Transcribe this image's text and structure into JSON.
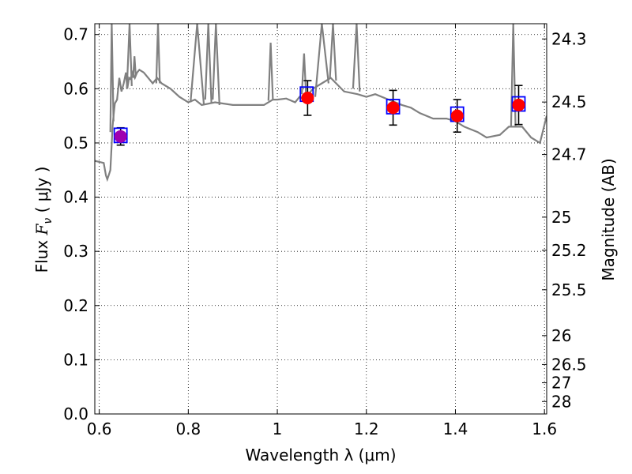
{
  "chart_data": {
    "type": "scatter",
    "x_axis": {
      "label": "Wavelength  λ (μm)",
      "lim": [
        0.59,
        1.605
      ],
      "ticks": [
        0.6,
        0.8,
        1.0,
        1.2,
        1.4,
        1.6
      ],
      "tick_labels": [
        "0.6",
        "0.8",
        "1",
        "1.2",
        "1.4",
        "1.6"
      ]
    },
    "y_axis": {
      "label_prefix": "Flux  ",
      "label_symbol": "F",
      "label_sub": "ν",
      "label_units": "  ( μJy )",
      "lim": [
        0,
        0.72
      ],
      "ticks": [
        0,
        0.1,
        0.2,
        0.3,
        0.4,
        0.5,
        0.6,
        0.7
      ],
      "tick_labels": [
        "0.0",
        "0.1",
        "0.2",
        "0.3",
        "0.4",
        "0.5",
        "0.6",
        "0.7"
      ]
    },
    "y2_axis": {
      "label": "Magnitude (AB)",
      "ticks": [
        24.3,
        24.5,
        24.7,
        25,
        25.2,
        25.5,
        26,
        26.5,
        27,
        28
      ],
      "tick_labels": [
        "24.3",
        "24.5",
        "24.7",
        "25",
        "25.2",
        "25.5",
        "26",
        "26.5",
        "27",
        "28"
      ]
    },
    "grid": true,
    "model_spectrum": {
      "color": "#808080",
      "x": [
        0.59,
        0.61,
        0.615,
        0.618,
        0.621,
        0.625,
        0.63,
        0.632,
        0.635,
        0.64,
        0.645,
        0.65,
        0.655,
        0.66,
        0.663,
        0.667,
        0.67,
        0.675,
        0.68,
        0.685,
        0.69,
        0.7,
        0.72,
        0.73,
        0.74,
        0.76,
        0.78,
        0.8,
        0.815,
        0.83,
        0.86,
        0.9,
        0.94,
        0.97,
        0.99,
        1.0,
        1.02,
        1.04,
        1.05,
        1.06,
        1.08,
        1.1,
        1.12,
        1.15,
        1.18,
        1.2,
        1.22,
        1.25,
        1.28,
        1.3,
        1.32,
        1.35,
        1.38,
        1.4,
        1.42,
        1.45,
        1.47,
        1.5,
        1.52,
        1.55,
        1.57,
        1.59,
        1.605
      ],
      "y": [
        0.467,
        0.463,
        0.44,
        0.433,
        0.44,
        0.45,
        0.53,
        0.55,
        0.573,
        0.58,
        0.62,
        0.595,
        0.61,
        0.63,
        0.6,
        0.62,
        0.618,
        0.63,
        0.62,
        0.63,
        0.635,
        0.63,
        0.61,
        0.62,
        0.61,
        0.6,
        0.585,
        0.575,
        0.58,
        0.57,
        0.575,
        0.57,
        0.57,
        0.57,
        0.58,
        0.58,
        0.582,
        0.575,
        0.585,
        0.58,
        0.6,
        0.61,
        0.62,
        0.595,
        0.59,
        0.585,
        0.59,
        0.58,
        0.57,
        0.565,
        0.555,
        0.545,
        0.545,
        0.54,
        0.53,
        0.52,
        0.51,
        0.515,
        0.53,
        0.53,
        0.51,
        0.5,
        0.55
      ]
    },
    "model_spikes": [
      {
        "x": [
          0.625,
          0.628,
          0.632
        ],
        "y": [
          0.52,
          0.72,
          0.54
        ]
      },
      {
        "x": [
          0.662,
          0.668,
          0.673
        ],
        "y": [
          0.6,
          0.72,
          0.605
        ]
      },
      {
        "x": [
          0.676,
          0.679,
          0.682
        ],
        "y": [
          0.62,
          0.66,
          0.625
        ]
      },
      {
        "x": [
          0.728,
          0.732,
          0.736
        ],
        "y": [
          0.61,
          0.72,
          0.61
        ]
      },
      {
        "x": [
          0.805,
          0.82,
          0.835
        ],
        "y": [
          0.575,
          0.72,
          0.57
        ]
      },
      {
        "x": [
          0.838,
          0.845,
          0.852
        ],
        "y": [
          0.58,
          0.72,
          0.575
        ]
      },
      {
        "x": [
          0.855,
          0.862,
          0.87
        ],
        "y": [
          0.58,
          0.72,
          0.57
        ]
      },
      {
        "x": [
          0.98,
          0.985,
          0.99
        ],
        "y": [
          0.578,
          0.685,
          0.58
        ]
      },
      {
        "x": [
          1.055,
          1.06,
          1.065
        ],
        "y": [
          0.59,
          0.665,
          0.58
        ]
      },
      {
        "x": [
          1.085,
          1.1,
          1.115
        ],
        "y": [
          0.585,
          0.72,
          0.61
        ]
      },
      {
        "x": [
          1.118,
          1.125,
          1.132
        ],
        "y": [
          0.62,
          0.72,
          0.615
        ]
      },
      {
        "x": [
          1.17,
          1.178,
          1.185
        ],
        "y": [
          0.6,
          0.72,
          0.595
        ]
      },
      {
        "x": [
          1.525,
          1.53,
          1.535
        ],
        "y": [
          0.53,
          0.72,
          0.53
        ]
      }
    ],
    "synthetic_flux": {
      "marker": "open-square",
      "color": "#0000ff",
      "x": [
        0.648,
        1.066,
        1.26,
        1.404,
        1.542
      ],
      "y": [
        0.514,
        0.59,
        0.567,
        0.553,
        0.572
      ]
    },
    "observed_flux": {
      "x": [
        0.648,
        1.068,
        1.26,
        1.404,
        1.542
      ],
      "y": [
        0.512,
        0.583,
        0.565,
        0.55,
        0.57
      ],
      "err": [
        0.016,
        0.032,
        0.032,
        0.03,
        0.036
      ],
      "colors": [
        "#a000b0",
        "#ff0000",
        "#ff0000",
        "#ff0000",
        "#ff0000"
      ]
    }
  }
}
